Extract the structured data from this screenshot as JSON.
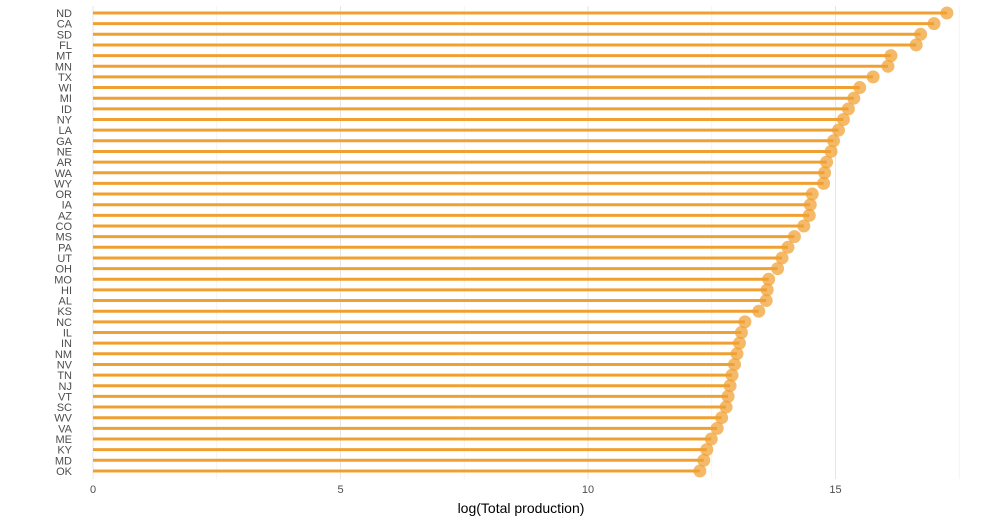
{
  "chart_data": {
    "type": "lollipop",
    "xlabel": "log(Total production)",
    "ylabel": "",
    "xlim": [
      0,
      17.5
    ],
    "xticks": [
      0,
      5,
      10,
      15
    ],
    "grid": true,
    "legend": "none",
    "color": "#f0a030",
    "categories": [
      "ND",
      "CA",
      "SD",
      "FL",
      "MT",
      "MN",
      "TX",
      "WI",
      "MI",
      "ID",
      "NY",
      "LA",
      "GA",
      "NE",
      "AR",
      "WA",
      "WY",
      "OR",
      "IA",
      "AZ",
      "CO",
      "MS",
      "PA",
      "UT",
      "OH",
      "MO",
      "HI",
      "AL",
      "KS",
      "NC",
      "IL",
      "IN",
      "NM",
      "NV",
      "TN",
      "NJ",
      "VT",
      "SC",
      "WV",
      "VA",
      "ME",
      "KY",
      "MD",
      "OK"
    ],
    "values": [
      17.25,
      16.99,
      16.72,
      16.63,
      16.12,
      16.06,
      15.76,
      15.49,
      15.37,
      15.26,
      15.16,
      15.06,
      14.96,
      14.91,
      14.82,
      14.78,
      14.76,
      14.53,
      14.49,
      14.47,
      14.36,
      14.17,
      14.04,
      13.92,
      13.83,
      13.65,
      13.62,
      13.6,
      13.45,
      13.17,
      13.1,
      13.06,
      13.01,
      12.96,
      12.91,
      12.87,
      12.83,
      12.79,
      12.7,
      12.61,
      12.49,
      12.4,
      12.34,
      12.26
    ]
  }
}
